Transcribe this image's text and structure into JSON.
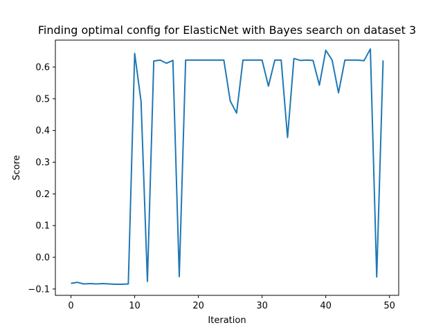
{
  "chart_data": {
    "type": "line",
    "title": "Finding optimal config for ElasticNet with Bayes search on dataset 3",
    "xlabel": "Iteration",
    "ylabel": "Score",
    "xlim": [
      -2.45,
      51.45
    ],
    "ylim": [
      -0.12,
      0.685
    ],
    "xticks": [
      0,
      10,
      20,
      30,
      40,
      50
    ],
    "yticks": [
      -0.1,
      0.0,
      0.1,
      0.2,
      0.3,
      0.4,
      0.5,
      0.6
    ],
    "ytick_labels": [
      "−0.1",
      "0.0",
      "0.1",
      "0.2",
      "0.3",
      "0.4",
      "0.5",
      "0.6"
    ],
    "grid": false,
    "color": "#1f77b4",
    "series": [
      {
        "x": [
          0,
          1,
          2,
          3,
          4,
          5,
          6,
          7,
          8,
          9,
          10,
          11,
          12,
          13,
          14,
          15,
          16,
          17,
          18,
          19,
          20,
          21,
          22,
          23,
          24,
          25,
          26,
          27,
          28,
          29,
          30,
          31,
          32,
          33,
          34,
          35,
          36,
          37,
          38,
          39,
          40,
          41,
          42,
          43,
          44,
          45,
          46,
          47,
          48,
          49
        ],
        "values": [
          -0.082,
          -0.079,
          -0.084,
          -0.083,
          -0.084,
          -0.083,
          -0.084,
          -0.085,
          -0.085,
          -0.084,
          0.643,
          0.492,
          -0.076,
          0.619,
          0.622,
          0.612,
          0.621,
          -0.061,
          0.622,
          0.622,
          0.622,
          0.622,
          0.622,
          0.622,
          0.622,
          0.493,
          0.455,
          0.622,
          0.622,
          0.622,
          0.622,
          0.54,
          0.622,
          0.622,
          0.378,
          0.627,
          0.621,
          0.622,
          0.621,
          0.543,
          0.653,
          0.622,
          0.519,
          0.622,
          0.622,
          0.622,
          0.62,
          0.657,
          -0.062,
          0.621
        ]
      }
    ]
  }
}
